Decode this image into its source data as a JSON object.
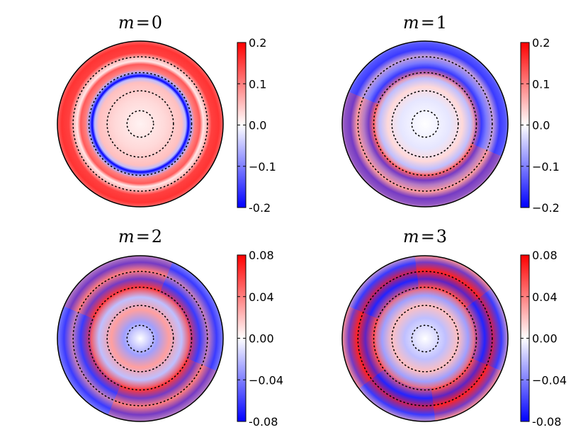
{
  "chart_data": [
    {
      "type": "heatmap",
      "title": {
        "var": "m",
        "eq": "=",
        "num": "0"
      },
      "colorscale": [
        "#0000ff",
        "#ffffff",
        "#ff0000"
      ],
      "clim": [
        -0.2,
        0.2
      ],
      "colorbar_ticks": [
        "0.2",
        "0.1",
        "0.0",
        "−0.1",
        "-0.2"
      ],
      "colorbar_tick_values": [
        0.2,
        0.1,
        0.0,
        -0.1,
        -0.2
      ],
      "dotted_circles_r": [
        0.16,
        0.4,
        0.62,
        0.81
      ],
      "rings": [
        {
          "r": 0.0,
          "v": 0.01
        },
        {
          "r": 0.3,
          "v": 0.03
        },
        {
          "r": 0.5,
          "v": 0.05
        },
        {
          "r": 0.55,
          "v": -0.05
        },
        {
          "r": 0.58,
          "v": -0.2
        },
        {
          "r": 0.62,
          "v": -0.06
        },
        {
          "r": 0.66,
          "v": 0.1
        },
        {
          "r": 0.72,
          "v": 0.13
        },
        {
          "r": 0.76,
          "v": 0.02
        },
        {
          "r": 0.8,
          "v": 0.05
        },
        {
          "r": 0.86,
          "v": 0.15
        },
        {
          "r": 0.95,
          "v": 0.16
        },
        {
          "r": 1.0,
          "v": 0.12
        }
      ]
    },
    {
      "type": "heatmap",
      "title": {
        "var": "m",
        "eq": "=",
        "num": "1"
      },
      "colorscale": [
        "#0000ff",
        "#ffffff",
        "#ff0000"
      ],
      "clim": [
        -0.2,
        0.2
      ],
      "colorbar_ticks": [
        "0.2",
        "0.1",
        "0.0",
        "−0.1",
        "−0.2"
      ],
      "colorbar_tick_values": [
        0.2,
        0.1,
        0.0,
        -0.1,
        -0.2
      ],
      "dotted_circles_r": [
        0.16,
        0.4,
        0.62,
        0.81
      ],
      "rings": [
        {
          "r": 0.0,
          "v": 0.0
        },
        {
          "r": 0.3,
          "v": -0.02
        },
        {
          "r": 0.45,
          "v": 0.03
        },
        {
          "r": 0.55,
          "v": -0.05
        },
        {
          "r": 0.62,
          "v": 0.1
        },
        {
          "r": 0.68,
          "v": -0.15
        },
        {
          "r": 0.74,
          "v": -0.08
        },
        {
          "r": 0.82,
          "v": 0.04
        },
        {
          "r": 0.9,
          "v": -0.15
        },
        {
          "r": 0.97,
          "v": -0.12
        },
        {
          "r": 1.0,
          "v": -0.08
        }
      ]
    },
    {
      "type": "heatmap",
      "title": {
        "var": "m",
        "eq": "=",
        "num": "2"
      },
      "colorscale": [
        "#0000ff",
        "#ffffff",
        "#ff0000"
      ],
      "clim": [
        -0.08,
        0.08
      ],
      "colorbar_ticks": [
        "0.08",
        "0.04",
        "0.00",
        "−0.04",
        "-0.08"
      ],
      "colorbar_tick_values": [
        0.08,
        0.04,
        0.0,
        -0.04,
        -0.08
      ],
      "dotted_circles_r": [
        0.16,
        0.4,
        0.62,
        0.81
      ],
      "rings": [
        {
          "r": 0.0,
          "v": 0.0
        },
        {
          "r": 0.2,
          "v": -0.03
        },
        {
          "r": 0.35,
          "v": 0.03
        },
        {
          "r": 0.5,
          "v": -0.02
        },
        {
          "r": 0.62,
          "v": 0.06
        },
        {
          "r": 0.72,
          "v": -0.06
        },
        {
          "r": 0.82,
          "v": 0.03
        },
        {
          "r": 0.92,
          "v": -0.06
        },
        {
          "r": 1.0,
          "v": -0.03
        }
      ]
    },
    {
      "type": "heatmap",
      "title": {
        "var": "m",
        "eq": "=",
        "num": "3"
      },
      "colorscale": [
        "#0000ff",
        "#ffffff",
        "#ff0000"
      ],
      "clim": [
        -0.08,
        0.08
      ],
      "colorbar_ticks": [
        "0.08",
        "0.04",
        "0.00",
        "−0.04",
        "-0.08"
      ],
      "colorbar_tick_values": [
        0.08,
        0.04,
        0.0,
        -0.04,
        -0.08
      ],
      "dotted_circles_r": [
        0.16,
        0.4,
        0.62,
        0.81
      ],
      "rings": [
        {
          "r": 0.0,
          "v": 0.0
        },
        {
          "r": 0.25,
          "v": -0.02
        },
        {
          "r": 0.4,
          "v": 0.02
        },
        {
          "r": 0.52,
          "v": -0.03
        },
        {
          "r": 0.62,
          "v": 0.05
        },
        {
          "r": 0.72,
          "v": -0.07
        },
        {
          "r": 0.82,
          "v": 0.07
        },
        {
          "r": 0.92,
          "v": -0.06
        },
        {
          "r": 1.0,
          "v": 0.02
        }
      ]
    }
  ]
}
